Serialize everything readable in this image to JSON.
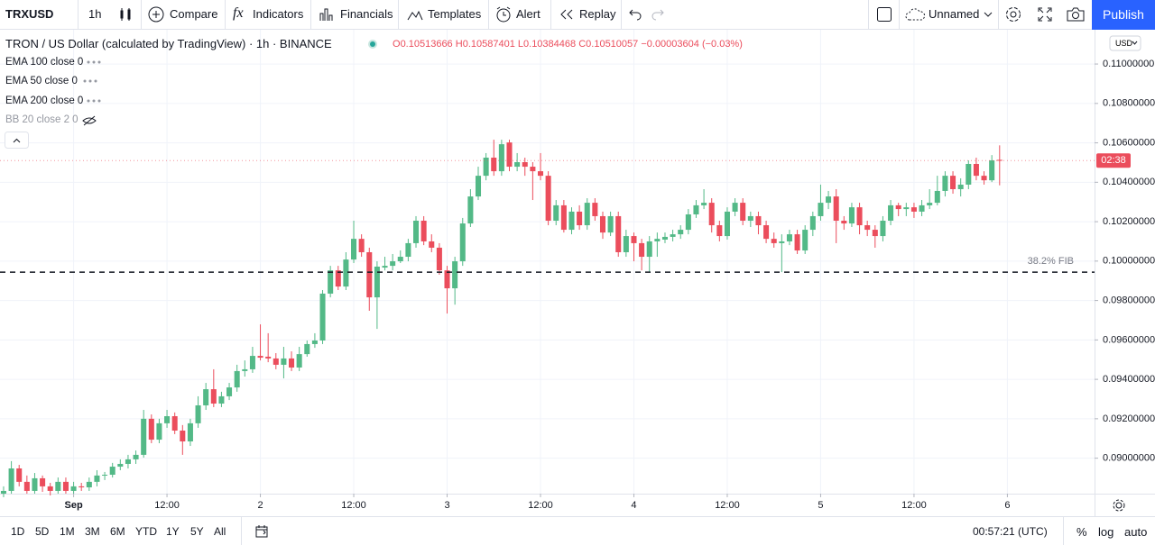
{
  "toolbar": {
    "symbol": "TRXUSD",
    "interval": "1h",
    "buttons": [
      "Compare",
      "Indicators",
      "Financials",
      "Templates",
      "Alert",
      "Replay"
    ],
    "layout": "Unnamed",
    "publish": "Publish"
  },
  "legend": {
    "title": "TRON / US Dollar (calculated by TradingView) · 1h · BINANCE",
    "ohlc_labels": [
      "O",
      "H",
      "L",
      "C"
    ],
    "change": "−0.00003604 (−0.03%)",
    "indicators": [
      "EMA 100 close 0",
      "EMA 50 close 0",
      "EMA 200 close 0",
      "BB 20 close 2 0"
    ]
  },
  "chart_data": {
    "type": "candlestick",
    "up_color": "#53b987",
    "down_color": "#eb4d5c",
    "candles": [
      [
        0.0882,
        0.08857,
        0.08802,
        0.08834
      ],
      [
        0.08834,
        0.08985,
        0.0882,
        0.08948
      ],
      [
        0.08948,
        0.08966,
        0.08857,
        0.0888
      ],
      [
        0.0888,
        0.08912,
        0.0882,
        0.08834
      ],
      [
        0.08834,
        0.08925,
        0.0882,
        0.08898
      ],
      [
        0.08898,
        0.08912,
        0.08829,
        0.08857
      ],
      [
        0.08857,
        0.08875,
        0.08811,
        0.08834
      ],
      [
        0.08834,
        0.08902,
        0.0882,
        0.0888
      ],
      [
        0.0888,
        0.08902,
        0.0882,
        0.08834
      ],
      [
        0.08834,
        0.0888,
        0.0882,
        0.08857
      ],
      [
        0.08857,
        0.08875,
        0.08834,
        0.08852
      ],
      [
        0.08852,
        0.08902,
        0.08834,
        0.0888
      ],
      [
        0.0888,
        0.08939,
        0.08857,
        0.08912
      ],
      [
        0.08912,
        0.0893,
        0.08889,
        0.08916
      ],
      [
        0.08916,
        0.08976,
        0.08902,
        0.08957
      ],
      [
        0.08957,
        0.08994,
        0.08939,
        0.08971
      ],
      [
        0.08971,
        0.09017,
        0.08948,
        0.08994
      ],
      [
        0.08994,
        0.09039,
        0.08971,
        0.09017
      ],
      [
        0.09017,
        0.09245,
        0.09003,
        0.092
      ],
      [
        0.092,
        0.09222,
        0.09076,
        0.09094
      ],
      [
        0.09094,
        0.092,
        0.09076,
        0.09177
      ],
      [
        0.09177,
        0.09245,
        0.09154,
        0.09213
      ],
      [
        0.09213,
        0.09232,
        0.09122,
        0.0914
      ],
      [
        0.0914,
        0.09168,
        0.09017,
        0.09085
      ],
      [
        0.09085,
        0.092,
        0.09062,
        0.09177
      ],
      [
        0.09177,
        0.09314,
        0.09154,
        0.09268
      ],
      [
        0.09268,
        0.09382,
        0.09245,
        0.0935
      ],
      [
        0.0935,
        0.09451,
        0.09259,
        0.09277
      ],
      [
        0.09277,
        0.09337,
        0.09259,
        0.09314
      ],
      [
        0.09314,
        0.09382,
        0.09295,
        0.09359
      ],
      [
        0.09359,
        0.09474,
        0.09337,
        0.09442
      ],
      [
        0.09442,
        0.09496,
        0.09414,
        0.09451
      ],
      [
        0.09451,
        0.09565,
        0.09433,
        0.09519
      ],
      [
        0.09519,
        0.09679,
        0.09496,
        0.0951
      ],
      [
        0.09515,
        0.09634,
        0.09487,
        0.09506
      ],
      [
        0.09506,
        0.09533,
        0.09451,
        0.09474
      ],
      [
        0.09474,
        0.09565,
        0.09405,
        0.09506
      ],
      [
        0.09506,
        0.09542,
        0.09442,
        0.0946
      ],
      [
        0.0946,
        0.09565,
        0.09442,
        0.09528
      ],
      [
        0.09528,
        0.09597,
        0.09515,
        0.09579
      ],
      [
        0.09579,
        0.09634,
        0.0956,
        0.09597
      ],
      [
        0.09597,
        0.09853,
        0.09579,
        0.09835
      ],
      [
        0.09835,
        0.09976,
        0.09816,
        0.09953
      ],
      [
        0.09953,
        0.09976,
        0.09853,
        0.09871
      ],
      [
        0.09871,
        0.10045,
        0.09853,
        0.10008
      ],
      [
        0.10008,
        0.10205,
        0.0999,
        0.10113
      ],
      [
        0.10113,
        0.10136,
        0.10022,
        0.10045
      ],
      [
        0.10045,
        0.10068,
        0.09748,
        0.09816
      ],
      [
        0.09816,
        0.09999,
        0.09656,
        0.09972
      ],
      [
        0.09967,
        0.10022,
        0.09953,
        0.09976
      ],
      [
        0.09976,
        0.10036,
        0.09953,
        0.09999
      ],
      [
        0.09999,
        0.10054,
        0.0999,
        0.10022
      ],
      [
        0.10022,
        0.10113,
        0.09999,
        0.10091
      ],
      [
        0.10091,
        0.10228,
        0.10068,
        0.10205
      ],
      [
        0.10205,
        0.10228,
        0.10081,
        0.101
      ],
      [
        0.101,
        0.10136,
        0.10045,
        0.10068
      ],
      [
        0.10068,
        0.10091,
        0.09931,
        0.09953
      ],
      [
        0.09953,
        0.09976,
        0.09734,
        0.09862
      ],
      [
        0.09862,
        0.10022,
        0.09779,
        0.09999
      ],
      [
        0.09999,
        0.10219,
        0.09976,
        0.10191
      ],
      [
        0.10191,
        0.10365,
        0.10173,
        0.10328
      ],
      [
        0.10328,
        0.10479,
        0.1031,
        0.10433
      ],
      [
        0.10433,
        0.10548,
        0.1041,
        0.10525
      ],
      [
        0.10525,
        0.10616,
        0.10433,
        0.10456
      ],
      [
        0.10456,
        0.10616,
        0.10433,
        0.10593
      ],
      [
        0.10602,
        0.10616,
        0.10456,
        0.10479
      ],
      [
        0.10479,
        0.10548,
        0.10456,
        0.10502
      ],
      [
        0.10502,
        0.10525,
        0.10433,
        0.10479
      ],
      [
        0.10479,
        0.10502,
        0.1031,
        0.10456
      ],
      [
        0.10456,
        0.10548,
        0.1041,
        0.10433
      ],
      [
        0.10433,
        0.10456,
        0.10182,
        0.10205
      ],
      [
        0.10205,
        0.1031,
        0.10182,
        0.10283
      ],
      [
        0.10283,
        0.1031,
        0.10145,
        0.10159
      ],
      [
        0.10159,
        0.10273,
        0.10136,
        0.10251
      ],
      [
        0.10251,
        0.10283,
        0.10159,
        0.10182
      ],
      [
        0.10182,
        0.10319,
        0.10159,
        0.10296
      ],
      [
        0.10296,
        0.10319,
        0.10205,
        0.10228
      ],
      [
        0.10228,
        0.10251,
        0.10113,
        0.10145
      ],
      [
        0.10145,
        0.10251,
        0.10127,
        0.10228
      ],
      [
        0.10228,
        0.10251,
        0.10022,
        0.10045
      ],
      [
        0.10045,
        0.10159,
        0.10022,
        0.10127
      ],
      [
        0.10127,
        0.10145,
        0.09999,
        0.10091
      ],
      [
        0.10091,
        0.10113,
        0.09953,
        0.10022
      ],
      [
        0.10022,
        0.10127,
        0.09944,
        0.101
      ],
      [
        0.101,
        0.10145,
        0.10022,
        0.10113
      ],
      [
        0.10109,
        0.10145,
        0.10091,
        0.10123
      ],
      [
        0.10123,
        0.10159,
        0.101,
        0.10136
      ],
      [
        0.10136,
        0.10182,
        0.10113,
        0.10159
      ],
      [
        0.10159,
        0.10264,
        0.10136,
        0.10237
      ],
      [
        0.10237,
        0.1031,
        0.10219,
        0.10283
      ],
      [
        0.10283,
        0.10365,
        0.10264,
        0.10296
      ],
      [
        0.10296,
        0.10319,
        0.10145,
        0.10182
      ],
      [
        0.10182,
        0.10205,
        0.101,
        0.10127
      ],
      [
        0.10127,
        0.10273,
        0.10109,
        0.10251
      ],
      [
        0.10251,
        0.10319,
        0.10228,
        0.10296
      ],
      [
        0.10296,
        0.10319,
        0.10182,
        0.10205
      ],
      [
        0.10205,
        0.10251,
        0.10173,
        0.10228
      ],
      [
        0.10228,
        0.10251,
        0.10136,
        0.10182
      ],
      [
        0.10182,
        0.10205,
        0.10091,
        0.10113
      ],
      [
        0.10113,
        0.10145,
        0.10068,
        0.10091
      ],
      [
        0.10091,
        0.10136,
        0.09944,
        0.101
      ],
      [
        0.101,
        0.10159,
        0.10081,
        0.10136
      ],
      [
        0.10136,
        0.10159,
        0.10036,
        0.10054
      ],
      [
        0.10054,
        0.10182,
        0.10036,
        0.10159
      ],
      [
        0.10159,
        0.10251,
        0.10127,
        0.10228
      ],
      [
        0.10228,
        0.10388,
        0.10205,
        0.10296
      ],
      [
        0.10296,
        0.10356,
        0.10264,
        0.10328
      ],
      [
        0.10328,
        0.10365,
        0.10091,
        0.10205
      ],
      [
        0.10205,
        0.10228,
        0.10159,
        0.10191
      ],
      [
        0.10191,
        0.10296,
        0.10173,
        0.10273
      ],
      [
        0.10273,
        0.10296,
        0.10136,
        0.10182
      ],
      [
        0.10182,
        0.10205,
        0.10127,
        0.10159
      ],
      [
        0.10159,
        0.10182,
        0.10068,
        0.10127
      ],
      [
        0.10127,
        0.10228,
        0.101,
        0.10205
      ],
      [
        0.10205,
        0.1031,
        0.10182,
        0.10283
      ],
      [
        0.10283,
        0.10296,
        0.10228,
        0.10264
      ],
      [
        0.10264,
        0.10296,
        0.10228,
        0.10273
      ],
      [
        0.10273,
        0.10296,
        0.10219,
        0.10251
      ],
      [
        0.10251,
        0.1031,
        0.10228,
        0.10283
      ],
      [
        0.10283,
        0.10365,
        0.10264,
        0.10296
      ],
      [
        0.10296,
        0.10433,
        0.10283,
        0.10356
      ],
      [
        0.10356,
        0.10456,
        0.10328,
        0.10433
      ],
      [
        0.10433,
        0.10456,
        0.10342,
        0.10365
      ],
      [
        0.10365,
        0.1042,
        0.10328,
        0.10388
      ],
      [
        0.10388,
        0.10511,
        0.10365,
        0.10493
      ],
      [
        0.10493,
        0.10525,
        0.1041,
        0.10433
      ],
      [
        0.10433,
        0.10456,
        0.10388,
        0.1041
      ],
      [
        0.1041,
        0.10538,
        0.10401,
        0.10511
      ],
      [
        0.10513666,
        0.10587401,
        0.10384468,
        0.10510057
      ]
    ],
    "xlim": [
      -0.46,
      140.2
    ],
    "xticks": [
      {
        "value": 9,
        "label": "Sep"
      },
      {
        "value": 21,
        "label": "12:00"
      },
      {
        "value": 33,
        "label": "2"
      },
      {
        "value": 45,
        "label": "12:00"
      },
      {
        "value": 57,
        "label": "3"
      },
      {
        "value": 69,
        "label": "12:00"
      },
      {
        "value": 81,
        "label": "4"
      },
      {
        "value": 93,
        "label": "12:00"
      },
      {
        "value": 105,
        "label": "5"
      },
      {
        "value": 117,
        "label": "12:00"
      },
      {
        "value": 129,
        "label": "6"
      }
    ],
    "ylim": [
      0.0882,
      0.11174
    ],
    "yticks": [
      {
        "value": 0.11,
        "label": "0.11000000"
      },
      {
        "value": 0.108,
        "label": "0.10800000"
      },
      {
        "value": 0.106,
        "label": "0.10600000"
      },
      {
        "value": 0.104,
        "label": "0.10400000"
      },
      {
        "value": 0.102,
        "label": "0.10200000"
      },
      {
        "value": 0.1,
        "label": "0.10000000"
      },
      {
        "value": 0.098,
        "label": "0.09800000"
      },
      {
        "value": 0.096,
        "label": "0.09600000"
      },
      {
        "value": 0.094,
        "label": "0.09400000"
      },
      {
        "value": 0.092,
        "label": "0.09200000"
      },
      {
        "value": 0.09,
        "label": "0.09000000"
      }
    ],
    "grid": true,
    "currency": "USD",
    "fib": {
      "label": "38.2% FIB",
      "value": 0.09944
    },
    "countdown": "02:38"
  },
  "bottom_bar": {
    "ranges": [
      "1D",
      "5D",
      "1M",
      "3M",
      "6M",
      "YTD",
      "1Y",
      "5Y",
      "All"
    ],
    "time": "00:57:21 (UTC)",
    "percent": "%",
    "log": "log",
    "auto": "auto"
  }
}
